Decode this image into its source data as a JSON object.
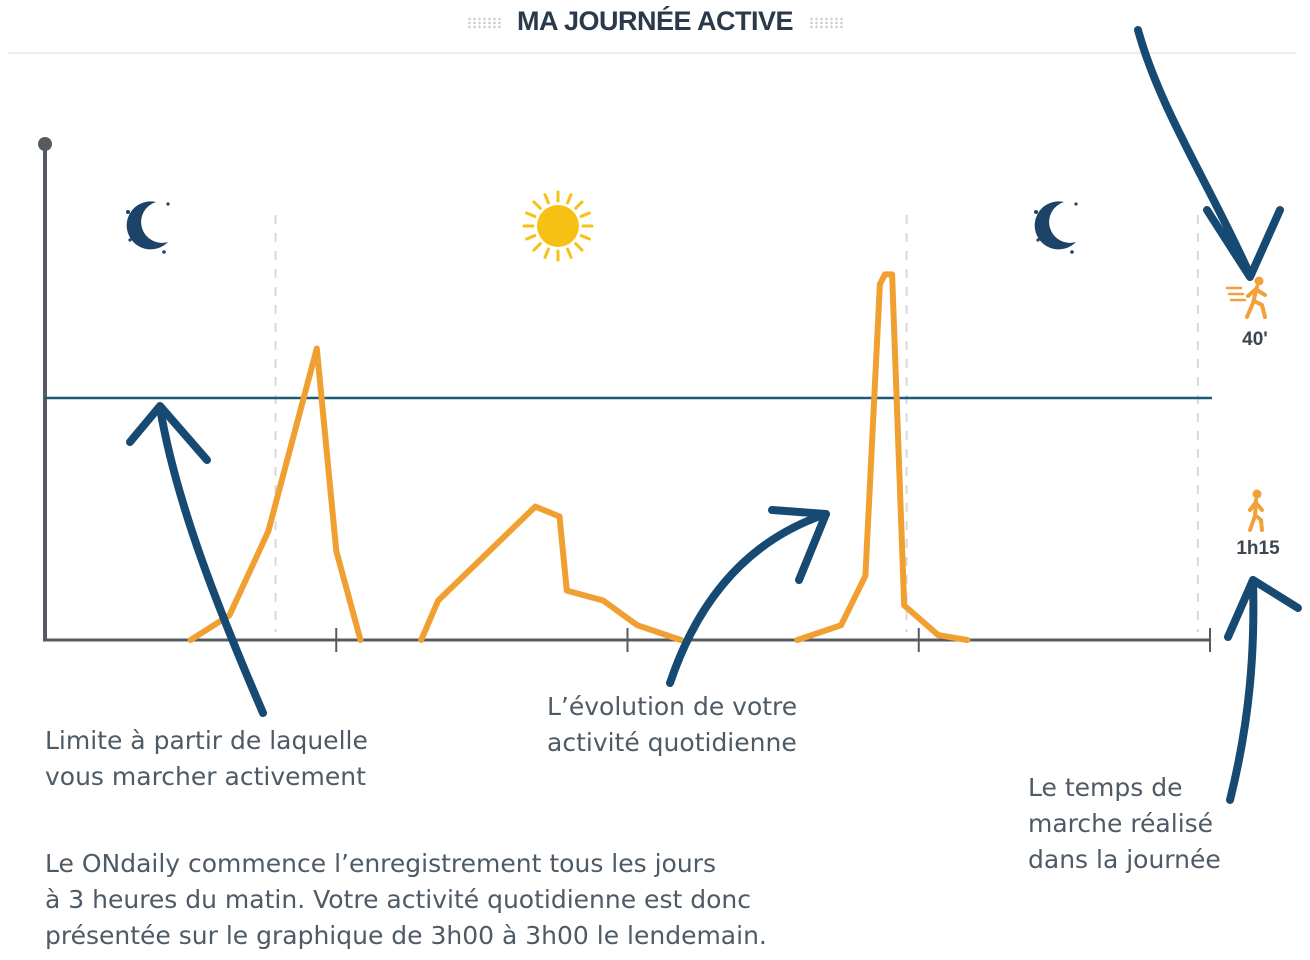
{
  "header": {
    "title": "MA JOURNÉE ACTIVE"
  },
  "chart_data": {
    "type": "line",
    "title": "MA JOURNÉE ACTIVE",
    "xlabel": "",
    "ylabel": "",
    "x_unit": "hours since 3h00",
    "xlim": [
      0,
      24
    ],
    "ylim": [
      0,
      100
    ],
    "grid": false,
    "day_period_separators": [
      4.75,
      17.75,
      23.75
    ],
    "threshold": 49,
    "series": [
      {
        "color": "#f0a030",
        "segments": [
          [
            [
              3.0,
              0
            ],
            [
              3.8,
              5
            ],
            [
              4.6,
              22
            ],
            [
              5.6,
              59
            ],
            [
              6.0,
              18
            ],
            [
              6.5,
              0
            ]
          ],
          [
            [
              7.75,
              0
            ],
            [
              8.1,
              8
            ],
            [
              10.1,
              27
            ],
            [
              10.6,
              25
            ],
            [
              10.75,
              10
            ],
            [
              11.5,
              8
            ],
            [
              12.2,
              3
            ],
            [
              13.1,
              0
            ]
          ],
          [
            [
              15.5,
              0
            ],
            [
              16.4,
              3
            ],
            [
              16.9,
              13
            ],
            [
              17.2,
              72
            ],
            [
              17.3,
              74
            ],
            [
              17.45,
              74
            ],
            [
              17.7,
              7
            ],
            [
              18.4,
              1
            ],
            [
              19.0,
              0
            ]
          ]
        ]
      }
    ],
    "walk_summary": [
      {
        "icon": "fast-walk-icon",
        "value": "40'"
      },
      {
        "icon": "walk-icon",
        "value": "1h15"
      }
    ]
  },
  "annotations": {
    "limit": [
      "Limite à partir de laquelle",
      "vous marcher activement"
    ],
    "evolution": [
      "L’évolution de votre",
      "activité quotidienne"
    ],
    "walktime": [
      "Le temps de",
      "marche réalisé",
      "dans la journée"
    ],
    "footer": [
      "Le ONdaily commence l’enregistrement tous les jours",
      "à 3 heures du matin. Votre activité quotidienne est donc",
      "présentée sur le graphique de 3h00 à 3h00 le lendemain."
    ]
  },
  "colors": {
    "activity": "#f0a030",
    "threshold": "#1c5a7a",
    "arrow": "#174a73",
    "night_icon": "#1d4468",
    "sun": "#f6c113",
    "axis": "#555b61",
    "walker": "#f2a03a"
  }
}
